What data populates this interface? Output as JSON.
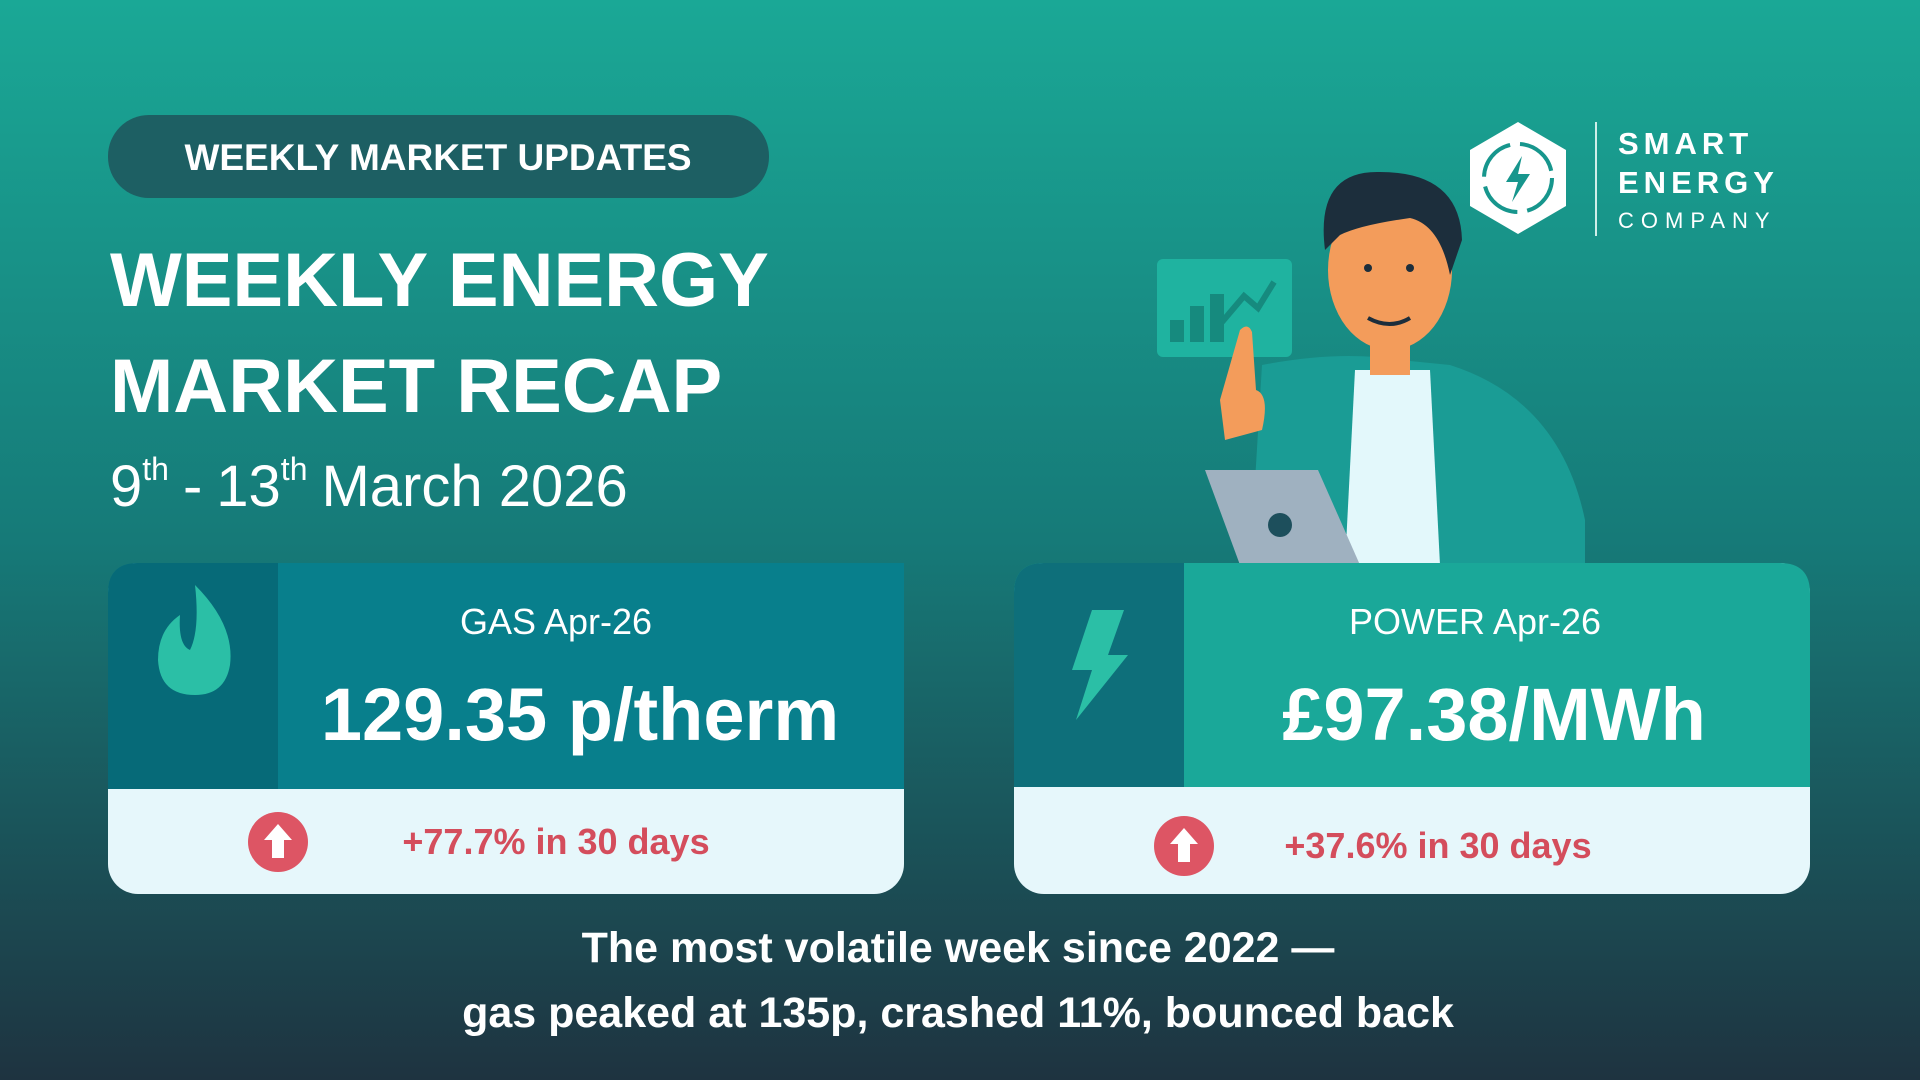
{
  "badge": "WEEKLY MARKET UPDATES",
  "title": {
    "line1": "WEEKLY ENERGY",
    "line2": "MARKET RECAP"
  },
  "date": {
    "start_day": "9",
    "start_suffix": "th",
    "separator": "-",
    "end_day": "13",
    "end_suffix": "th",
    "month_year": "March 2026"
  },
  "logo": {
    "line1": "SMART",
    "line2": "ENERGY",
    "line3": "COMPANY"
  },
  "cards": [
    {
      "label": "GAS Apr-26",
      "price": "129.35 p/therm",
      "change": "+77.7% in 30 days"
    },
    {
      "label": "POWER Apr-26",
      "price": "£97.38/MWh",
      "change": "+37.6% in 30 days"
    }
  ],
  "footer": {
    "line1": "The most volatile week since 2022 —",
    "line2": "gas peaked at 135p, crashed 11%, bounced back"
  }
}
